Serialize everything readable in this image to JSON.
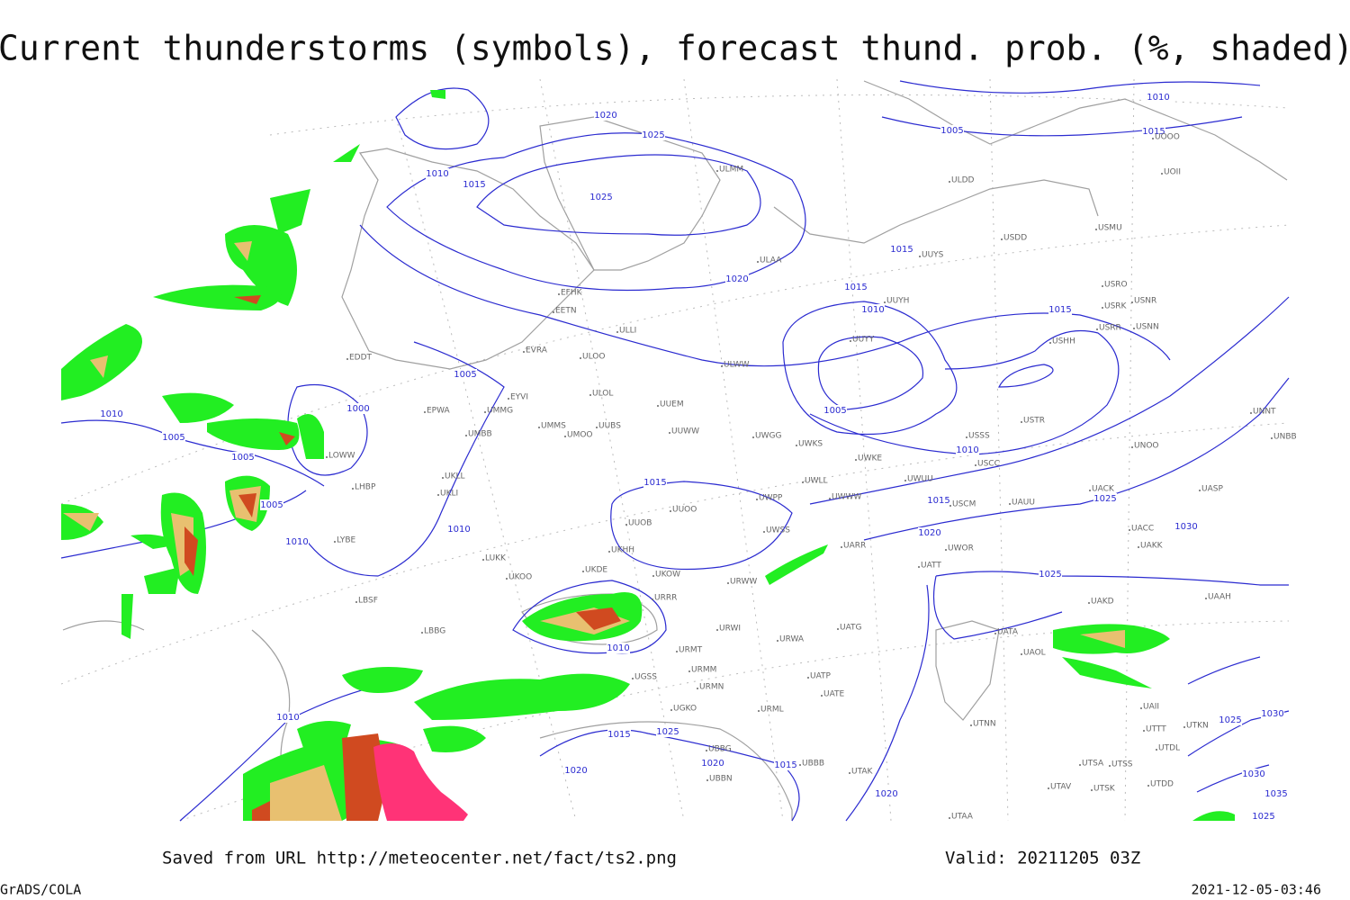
{
  "header": {
    "title": "Current thunderstorms (symbols), forecast thund. prob. (%, shaded)"
  },
  "footer": {
    "saved": "Saved from URL http://meteocenter.net/fact/ts2.png",
    "valid": "Valid: 20211205 03Z",
    "software": "GrADS/COLA",
    "timestamp": "2021-12-05-03:46"
  },
  "map": {
    "isobar_labels": [
      1020,
      1025,
      1010,
      1015,
      1025,
      1020,
      1015,
      1015,
      1010,
      1015,
      1005,
      1000,
      1010,
      1005,
      1005,
      1005,
      1010,
      1010,
      1015,
      1005,
      1010,
      1015,
      1025,
      1030,
      1020,
      1025,
      1010,
      1010,
      1015,
      1025,
      1020,
      1020,
      1015,
      1020,
      1010,
      1005,
      1015,
      1025,
      1030,
      1030,
      1025,
      1035
    ],
    "stations": [
      "EFHK",
      "EETN",
      "ULLI",
      "ULOO",
      "EVRA",
      "EYVI",
      "UMMG",
      "EPWA",
      "UMBB",
      "UMOO",
      "UUBS",
      "UMMS",
      "UKLL",
      "UKLI",
      "LHBP",
      "LOWW",
      "EDDT",
      "LYBE",
      "LUKK",
      "UKOO",
      "UKDE",
      "UKHH",
      "UKOW",
      "URRR",
      "URWI",
      "URMT",
      "URMM",
      "URMN",
      "UGSS",
      "LBSF",
      "LBBG",
      "UUOB",
      "UUOO",
      "UWPP",
      "UWWW",
      "UWGG",
      "UWKS",
      "UWKE",
      "UWLL",
      "UWUU",
      "USSS",
      "USCC",
      "USCM",
      "UAUU",
      "USTR",
      "UNOO",
      "UNBB",
      "UNNT",
      "UACK",
      "UASP",
      "UACC",
      "UAKK",
      "UATT",
      "UWOR",
      "UARR",
      "UWSS",
      "URWW",
      "URWA",
      "UATG",
      "UATA",
      "UAOL",
      "UAAH",
      "UAKD",
      "URML",
      "UTNN",
      "UBBG",
      "UBBN",
      "UBBB",
      "UTAA",
      "UTAK",
      "UTAV",
      "UTSS",
      "UTSK",
      "UTSA",
      "UTDD",
      "UTTT",
      "UTDL",
      "UTKN",
      "UAII",
      "UATE",
      "UATP",
      "ULAA",
      "ULMM",
      "ULDD",
      "USDD",
      "USMU",
      "USRO",
      "USRK",
      "USNR",
      "USRR",
      "USNN",
      "USHH",
      "UUYH",
      "UUYY",
      "ULWW",
      "ULOL",
      "UUYS",
      "UOOO",
      "UOII",
      "UUEM",
      "UUWW",
      "UGKO"
    ]
  }
}
